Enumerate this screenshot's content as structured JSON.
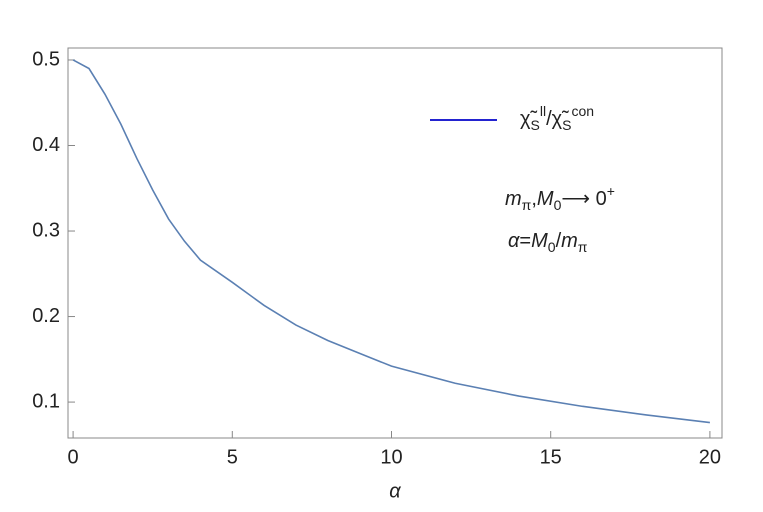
{
  "chart_data": {
    "type": "line",
    "x_label": "α",
    "x": [
      0,
      0.5,
      1,
      1.5,
      2,
      2.5,
      3,
      3.5,
      4,
      5,
      6,
      7,
      8,
      9,
      10,
      12,
      14,
      16,
      18,
      20
    ],
    "series": [
      {
        "name": [
          {
            "text": "χ̃",
            "style": "normal"
          },
          {
            "text": "S",
            "style": "sub"
          },
          {
            "text": "ll",
            "style": "sup"
          },
          {
            "text": "/χ̃",
            "style": "normal"
          },
          {
            "text": "S",
            "style": "sub"
          },
          {
            "text": "con",
            "style": "sup"
          }
        ],
        "color": "#5b80b3",
        "legend_color": "#2323d0",
        "values": [
          0.5,
          0.49,
          0.46,
          0.425,
          0.385,
          0.348,
          0.314,
          0.288,
          0.266,
          0.24,
          0.213,
          0.19,
          0.172,
          0.157,
          0.142,
          0.122,
          0.107,
          0.095,
          0.085,
          0.076
        ]
      }
    ],
    "annotations": [
      [
        {
          "text": "m",
          "style": "italic"
        },
        {
          "text": "π",
          "style": "sub"
        },
        {
          "text": ",",
          "style": "normal"
        },
        {
          "text": "M",
          "style": "italic"
        },
        {
          "text": "0",
          "style": "sub"
        },
        {
          "text": "⟶ 0",
          "style": "normal"
        },
        {
          "text": "+",
          "style": "sup"
        }
      ],
      [
        {
          "text": "α",
          "style": "italic"
        },
        {
          "text": "=",
          "style": "normal"
        },
        {
          "text": "M",
          "style": "italic"
        },
        {
          "text": "0",
          "style": "sub"
        },
        {
          "text": "/",
          "style": "normal"
        },
        {
          "text": "m",
          "style": "italic"
        },
        {
          "text": "π",
          "style": "sub"
        }
      ]
    ],
    "xlim": [
      -0.16,
      20.38
    ],
    "ylim": [
      0.058,
      0.514
    ],
    "xticks": [
      0,
      5,
      10,
      15,
      20
    ],
    "yticks": [
      0.1,
      0.2,
      0.3,
      0.4,
      0.5
    ],
    "grid": false
  }
}
